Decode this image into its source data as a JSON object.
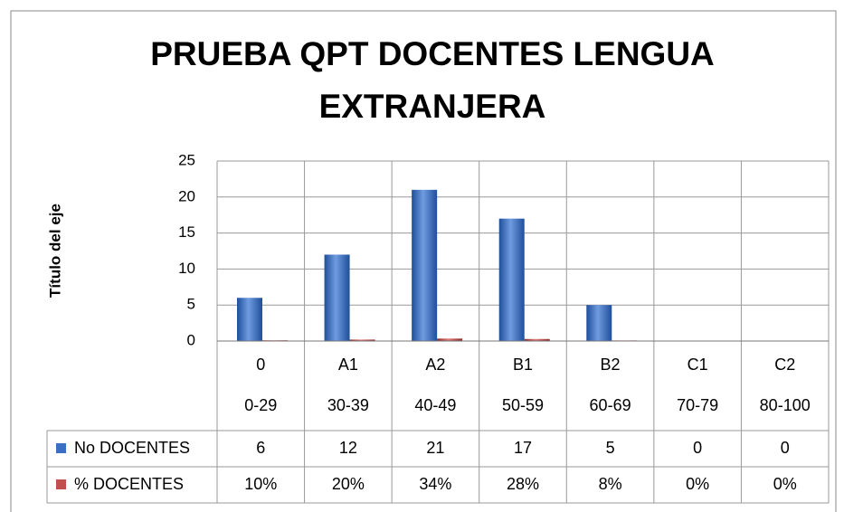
{
  "chart_data": {
    "type": "bar",
    "title": "PRUEBA QPT DOCENTES LENGUA EXTRANJERA",
    "y_label": "Título del eje",
    "categories": [
      [
        "0",
        "0-29"
      ],
      [
        "A1",
        "30-39"
      ],
      [
        "A2",
        "40-49"
      ],
      [
        "B1",
        "50-59"
      ],
      [
        "B2",
        "60-69"
      ],
      [
        "C1",
        "70-79"
      ],
      [
        "C2",
        "80-100"
      ]
    ],
    "series": [
      {
        "name": "No DOCENTES",
        "color": "#3a6fc4",
        "values": [
          6,
          12,
          21,
          17,
          5,
          0,
          0
        ]
      },
      {
        "name": "% DOCENTES",
        "color": "#c0504d",
        "values": [
          0.1,
          0.2,
          0.34,
          0.28,
          0.08,
          0,
          0
        ],
        "value_labels": [
          "10%",
          "20%",
          "34%",
          "28%",
          "8%",
          "0%",
          "0%"
        ]
      }
    ],
    "ylim": [
      0,
      25
    ],
    "yticks": [
      0,
      5,
      10,
      15,
      20,
      25
    ],
    "grid": true,
    "data_table": true
  }
}
